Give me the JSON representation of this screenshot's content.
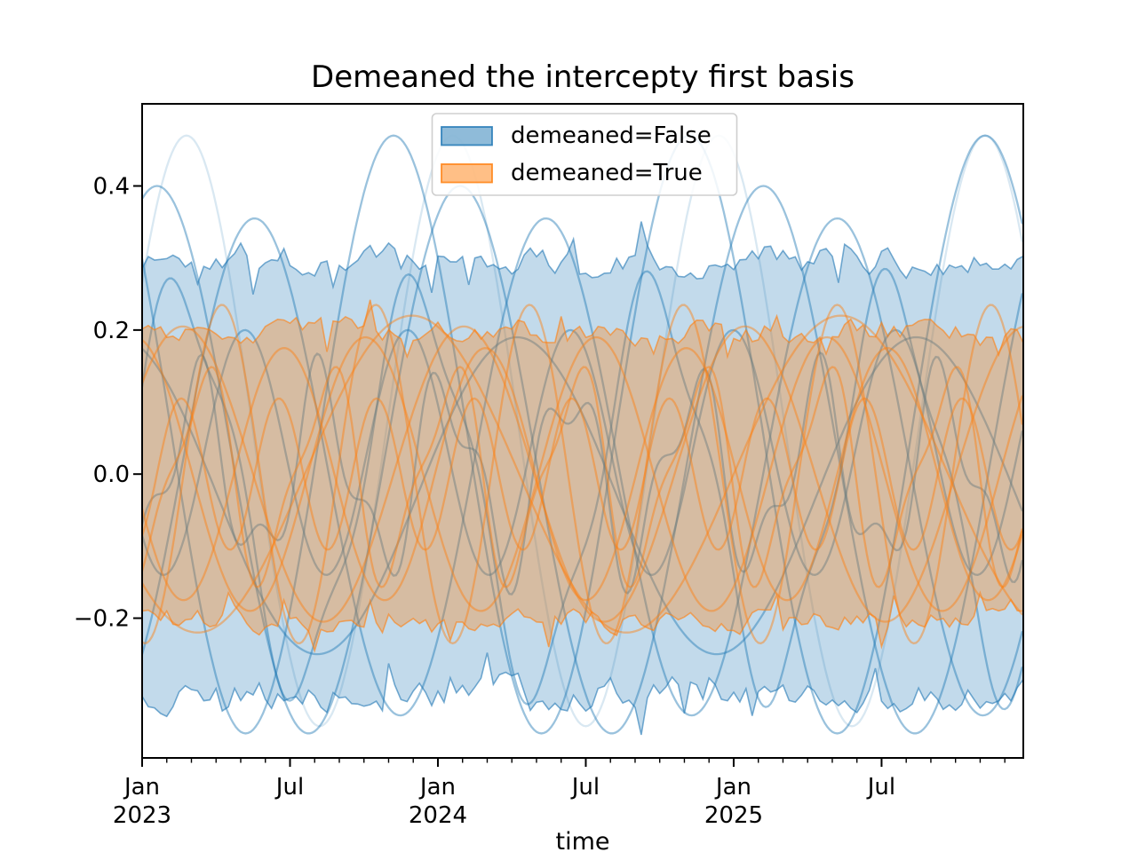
{
  "figure": {
    "title": "Demeaned the intercepty first basis",
    "xlabel": "time"
  },
  "legend": {
    "items": [
      {
        "label": "demeaned=False",
        "color": "#1f77b4"
      },
      {
        "label": "demeaned=True",
        "color": "#ff7f0e"
      }
    ]
  },
  "colors": {
    "blue": "#1f77b4",
    "orange": "#ff7f0e",
    "tick": "#000000",
    "legend_border": "#cfcfcf"
  },
  "chart_data": {
    "type": "line",
    "title": "Demeaned the intercepty first basis",
    "xlabel": "time",
    "ylabel": "",
    "x_domain_months": [
      0,
      35.75
    ],
    "x_start": "2023-01",
    "x_end": "2025-12",
    "ylim": [
      -0.394,
      0.514
    ],
    "grid": false,
    "legend_position": "upper center",
    "y_ticks": {
      "values": [
        0.4,
        0.2,
        0.0,
        -0.2
      ],
      "labels": [
        "0.4",
        "0.2",
        "0.0",
        "−0.2"
      ]
    },
    "x_major_ticks": [
      {
        "month": 0,
        "line1": "Jan",
        "line2": "2023"
      },
      {
        "month": 6,
        "line1": "Jul",
        "line2": ""
      },
      {
        "month": 12,
        "line1": "Jan",
        "line2": "2024"
      },
      {
        "month": 18,
        "line1": "Jul",
        "line2": ""
      },
      {
        "month": 24,
        "line1": "Jan",
        "line2": "2025"
      },
      {
        "month": 30,
        "line1": "Jul",
        "line2": ""
      }
    ],
    "x_minor_tick_every_months": 1,
    "bands": [
      {
        "name": "demeaned=False envelope",
        "color": "#1f77b4",
        "fill_alpha": 0.27,
        "seed": 1337,
        "upper_base": 0.297,
        "lower_base": -0.305,
        "noise": 0.018,
        "spike": 0.06,
        "upper_clamp": [
          0.245,
          0.36
        ],
        "lower_clamp": [
          -0.362,
          -0.248
        ]
      },
      {
        "name": "demeaned=True envelope",
        "color": "#ff7f0e",
        "fill_alpha": 0.33,
        "seed": 7001,
        "upper_base": 0.2,
        "lower_base": -0.202,
        "noise": 0.013,
        "spike": 0.045,
        "upper_clamp": [
          0.163,
          0.242
        ],
        "lower_clamp": [
          -0.245,
          -0.165
        ]
      }
    ],
    "series": [
      {
        "group": "demeaned=False",
        "color": "#1f77b4",
        "offset": 0.06,
        "amplitude": 0.41,
        "period_years": 0.9,
        "phase_years": 0.825,
        "opacity": 0.17
      },
      {
        "group": "demeaned=False",
        "color": "#1f77b4",
        "offset": 0.055,
        "amplitude": 0.415,
        "period_years": 1.0,
        "phase_years": 0.6,
        "opacity": 0.45
      },
      {
        "group": "demeaned=False",
        "color": "#1f77b4",
        "offset": 0.02,
        "amplitude": 0.38,
        "period_years": 1.025,
        "phase_years": -0.206,
        "opacity": 0.45
      },
      {
        "group": "demeaned=False",
        "color": "#1f77b4",
        "offset": 0.01,
        "amplitude": 0.345,
        "period_years": 0.985,
        "phase_years": 0.134,
        "opacity": 0.45
      },
      {
        "group": "demeaned=False",
        "color": "#1f77b4",
        "offset": -0.02,
        "amplitude": 0.27,
        "period_years": 0.8,
        "phase_years": -0.07,
        "opacity": 0.45,
        "wobble": {
          "amplitude": 0.04,
          "period_years": 0.27,
          "phase": 0
        }
      },
      {
        "group": "demeaned=False",
        "color": "#1f77b4",
        "offset": 0.03,
        "amplitude": 0.17,
        "period_years": 0.55,
        "phase_years": 0.21,
        "opacity": 0.45
      },
      {
        "group": "demeaned=False",
        "color": "#1f77b4",
        "offset": -0.03,
        "amplitude": 0.22,
        "period_years": 1.35,
        "phase_years": -0.42,
        "opacity": 0.45
      },
      {
        "group": "demeaned=False",
        "color": "#1f77b4",
        "offset": 0.0,
        "amplitude": 0.12,
        "period_years": 0.42,
        "phase_years": 0.08,
        "opacity": 0.45,
        "wobble": {
          "amplitude": 0.05,
          "period_years": 0.19,
          "phase": 1
        }
      },
      {
        "group": "demeaned=True",
        "color": "#ff7f0e",
        "offset": 0.0,
        "amplitude": 0.235,
        "period_years": 0.52,
        "phase_years": 0.14,
        "opacity": 0.45
      },
      {
        "group": "demeaned=True",
        "color": "#ff7f0e",
        "offset": 0.0,
        "amplitude": 0.205,
        "period_years": 0.95,
        "phase_years": -0.1,
        "opacity": 0.45
      },
      {
        "group": "demeaned=True",
        "color": "#ff7f0e",
        "offset": 0.0,
        "amplitude": 0.175,
        "period_years": 0.68,
        "phase_years": 0.31,
        "opacity": 0.45
      },
      {
        "group": "demeaned=True",
        "color": "#ff7f0e",
        "offset": 0.0,
        "amplitude": 0.22,
        "period_years": 1.45,
        "phase_years": 0.55,
        "opacity": 0.45
      },
      {
        "group": "demeaned=True",
        "color": "#ff7f0e",
        "offset": 0.0,
        "amplitude": 0.135,
        "period_years": 0.42,
        "phase_years": 0.1,
        "opacity": 0.45,
        "wobble": {
          "amplitude": 0.04,
          "period_years": 0.21,
          "phase": 0
        }
      },
      {
        "group": "demeaned=True",
        "color": "#ff7f0e",
        "offset": 0.0,
        "amplitude": 0.19,
        "period_years": 0.78,
        "phase_years": -0.22,
        "opacity": 0.45
      },
      {
        "group": "demeaned=True",
        "color": "#ff7f0e",
        "offset": 0.0,
        "amplitude": 0.105,
        "period_years": 0.33,
        "phase_years": 0.05,
        "opacity": 0.45
      }
    ]
  }
}
